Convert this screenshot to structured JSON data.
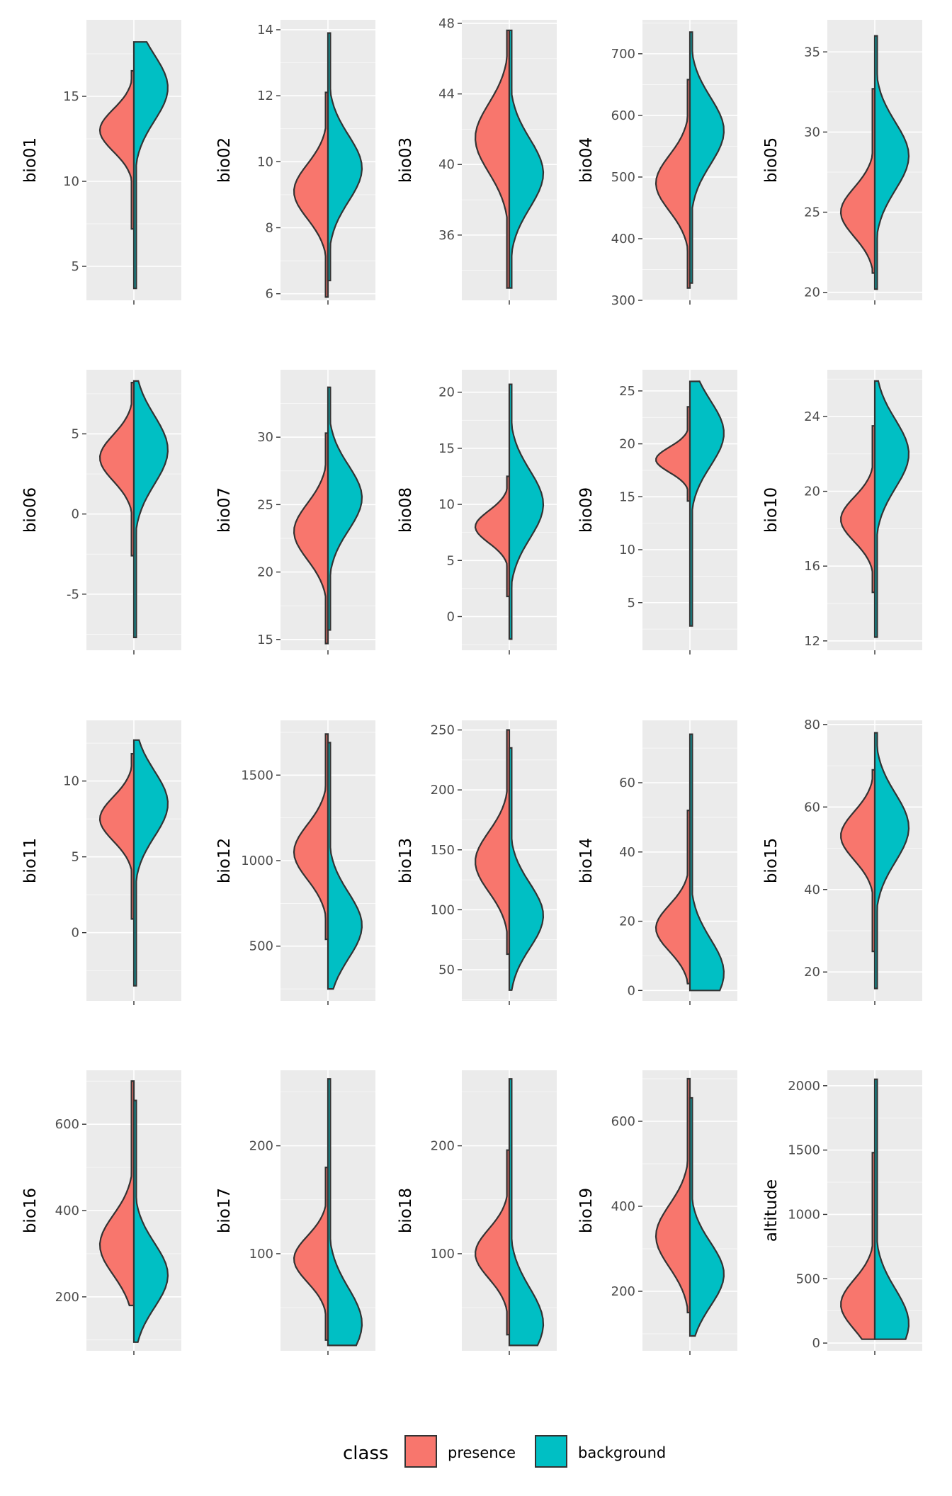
{
  "chart_data": {
    "type": "violin",
    "facet_layout": "5 columns x 4 rows",
    "style": "split violin, presence on left half, background on right half",
    "legend": {
      "title": "class",
      "position": "bottom",
      "entries": [
        {
          "label": "presence",
          "color": "#F8766D"
        },
        {
          "label": "background",
          "color": "#00BFC4"
        }
      ]
    },
    "panels": [
      {
        "var": "bio01",
        "ylim": [
          3.0,
          19.5
        ],
        "breaks": [
          5,
          10,
          15
        ],
        "presence": {
          "min": 7.2,
          "max": 16.5,
          "mode": 13.0
        },
        "background": {
          "min": 3.7,
          "max": 18.2,
          "mode": 15.5
        }
      },
      {
        "var": "bio02",
        "ylim": [
          5.8,
          14.3
        ],
        "breaks": [
          6,
          8,
          10,
          12,
          14
        ],
        "presence": {
          "min": 5.9,
          "max": 12.1,
          "mode": 9.1
        },
        "background": {
          "min": 6.4,
          "max": 13.9,
          "mode": 9.8
        }
      },
      {
        "var": "bio03",
        "ylim": [
          32.3,
          48.2
        ],
        "breaks": [
          36,
          40,
          44,
          48
        ],
        "presence": {
          "min": 33.0,
          "max": 47.6,
          "mode": 41.5
        },
        "background": {
          "min": 33.0,
          "max": 47.6,
          "mode": 39.5
        }
      },
      {
        "var": "bio04",
        "ylim": [
          300,
          755
        ],
        "breaks": [
          300,
          400,
          500,
          600,
          700
        ],
        "presence": {
          "min": 320,
          "max": 658,
          "mode": 490
        },
        "background": {
          "min": 328,
          "max": 735,
          "mode": 575
        }
      },
      {
        "var": "bio05",
        "ylim": [
          19.5,
          37.0
        ],
        "breaks": [
          20,
          25,
          30,
          35
        ],
        "presence": {
          "min": 21.2,
          "max": 32.7,
          "mode": 25.0
        },
        "background": {
          "min": 20.2,
          "max": 36.0,
          "mode": 28.5
        }
      },
      {
        "var": "bio06",
        "ylim": [
          -8.5,
          9.0
        ],
        "breaks": [
          -5,
          0,
          5
        ],
        "presence": {
          "min": -2.6,
          "max": 8.2,
          "mode": 3.5
        },
        "background": {
          "min": -7.7,
          "max": 8.3,
          "mode": 4.0
        }
      },
      {
        "var": "bio07",
        "ylim": [
          14.2,
          35.0
        ],
        "breaks": [
          15,
          20,
          25,
          30
        ],
        "presence": {
          "min": 14.7,
          "max": 30.3,
          "mode": 23.0
        },
        "background": {
          "min": 15.7,
          "max": 33.7,
          "mode": 25.5
        }
      },
      {
        "var": "bio08",
        "ylim": [
          -3.0,
          22.0
        ],
        "breaks": [
          0,
          5,
          10,
          15,
          20
        ],
        "presence": {
          "min": 1.8,
          "max": 12.5,
          "mode": 8.0
        },
        "background": {
          "min": -2.0,
          "max": 20.7,
          "mode": 10.0
        }
      },
      {
        "var": "bio09",
        "ylim": [
          0.5,
          27.0
        ],
        "breaks": [
          5,
          10,
          15,
          20,
          25
        ],
        "presence": {
          "min": 14.6,
          "max": 23.5,
          "mode": 18.5
        },
        "background": {
          "min": 2.8,
          "max": 25.9,
          "mode": 21.0
        }
      },
      {
        "var": "bio10",
        "ylim": [
          11.5,
          26.5
        ],
        "breaks": [
          12,
          16,
          20,
          24
        ],
        "presence": {
          "min": 14.6,
          "max": 23.5,
          "mode": 18.5
        },
        "background": {
          "min": 12.2,
          "max": 25.9,
          "mode": 22.0
        }
      },
      {
        "var": "bio11",
        "ylim": [
          -4.5,
          14.0
        ],
        "breaks": [
          0,
          5,
          10
        ],
        "presence": {
          "min": 0.9,
          "max": 11.8,
          "mode": 7.5
        },
        "background": {
          "min": -3.5,
          "max": 12.7,
          "mode": 8.5
        }
      },
      {
        "var": "bio12",
        "ylim": [
          180,
          1820
        ],
        "breaks": [
          500,
          1000,
          1500
        ],
        "presence": {
          "min": 540,
          "max": 1740,
          "mode": 1050
        },
        "background": {
          "min": 250,
          "max": 1690,
          "mode": 620
        }
      },
      {
        "var": "bio13",
        "ylim": [
          24,
          258
        ],
        "breaks": [
          50,
          100,
          150,
          200,
          250
        ],
        "presence": {
          "min": 63,
          "max": 250,
          "mode": 140
        },
        "background": {
          "min": 33,
          "max": 235,
          "mode": 95
        }
      },
      {
        "var": "bio14",
        "ylim": [
          -3,
          78
        ],
        "breaks": [
          0,
          20,
          40,
          60
        ],
        "presence": {
          "min": 2,
          "max": 52,
          "mode": 18
        },
        "background": {
          "min": 0,
          "max": 74,
          "mode": 5
        }
      },
      {
        "var": "bio15",
        "ylim": [
          13,
          81
        ],
        "breaks": [
          20,
          40,
          60,
          80
        ],
        "presence": {
          "min": 25,
          "max": 69,
          "mode": 53
        },
        "background": {
          "min": 16,
          "max": 78,
          "mode": 55
        }
      },
      {
        "var": "bio16",
        "ylim": [
          75,
          725
        ],
        "breaks": [
          200,
          400,
          600
        ],
        "presence": {
          "min": 180,
          "max": 700,
          "mode": 320
        },
        "background": {
          "min": 95,
          "max": 655,
          "mode": 250
        }
      },
      {
        "var": "bio17",
        "ylim": [
          10,
          270
        ],
        "breaks": [
          100,
          200
        ],
        "presence": {
          "min": 20,
          "max": 180,
          "mode": 95
        },
        "background": {
          "min": 15,
          "max": 262,
          "mode": 35
        }
      },
      {
        "var": "bio18",
        "ylim": [
          10,
          270
        ],
        "breaks": [
          100,
          200
        ],
        "presence": {
          "min": 25,
          "max": 196,
          "mode": 100
        },
        "background": {
          "min": 15,
          "max": 262,
          "mode": 35
        }
      },
      {
        "var": "bio19",
        "ylim": [
          60,
          720
        ],
        "breaks": [
          200,
          400,
          600
        ],
        "presence": {
          "min": 150,
          "max": 700,
          "mode": 330
        },
        "background": {
          "min": 95,
          "max": 655,
          "mode": 240
        }
      },
      {
        "var": "altitude",
        "ylim": [
          -60,
          2120
        ],
        "breaks": [
          0,
          500,
          1000,
          1500,
          2000
        ],
        "presence": {
          "min": 30,
          "max": 1480,
          "mode": 300
        },
        "background": {
          "min": 30,
          "max": 2050,
          "mode": 150
        }
      }
    ]
  }
}
